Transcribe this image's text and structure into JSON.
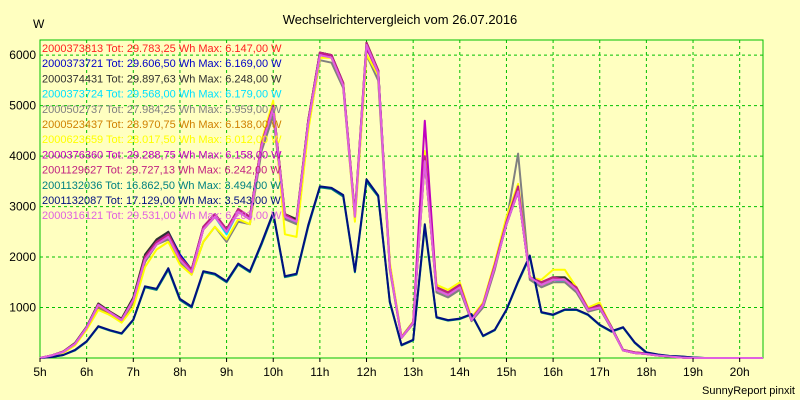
{
  "chart_data": {
    "type": "line",
    "title": "Wechselrichtervergleich vom 26.07.2016",
    "ylabel": "W",
    "xlabel": "",
    "footer": "SunnyReport pinxit",
    "x_ticks": [
      "5h",
      "6h",
      "7h",
      "8h",
      "9h",
      "10h",
      "11h",
      "12h",
      "13h",
      "14h",
      "15h",
      "16h",
      "17h",
      "18h",
      "19h",
      "20h"
    ],
    "y_ticks": [
      1000,
      2000,
      3000,
      4000,
      5000,
      6000
    ],
    "xlim": [
      5,
      20.5
    ],
    "ylim": [
      0,
      6300
    ],
    "grid": true,
    "legend_position": "top-left",
    "x": [
      5.0,
      5.25,
      5.5,
      5.75,
      6.0,
      6.25,
      6.5,
      6.75,
      7.0,
      7.25,
      7.5,
      7.75,
      8.0,
      8.25,
      8.5,
      8.75,
      9.0,
      9.25,
      9.5,
      9.75,
      10.0,
      10.25,
      10.5,
      10.75,
      11.0,
      11.25,
      11.5,
      11.75,
      12.0,
      12.25,
      12.5,
      12.75,
      13.0,
      13.25,
      13.5,
      13.75,
      14.0,
      14.25,
      14.5,
      14.75,
      15.0,
      15.25,
      15.5,
      15.75,
      16.0,
      16.25,
      16.5,
      16.75,
      17.0,
      17.25,
      17.5,
      17.75,
      18.0,
      18.25,
      18.5,
      18.75,
      19.0,
      19.25,
      19.5,
      19.75,
      20.0,
      20.25,
      20.5
    ],
    "series": [
      {
        "name": "2000373813",
        "label": "2000373813 Tot: 29.783,25 Wh Max: 6.147,00 W",
        "color": "#ff2020",
        "values": [
          0,
          50,
          120,
          280,
          600,
          1050,
          900,
          750,
          1150,
          1950,
          2250,
          2400,
          1950,
          1700,
          2550,
          2800,
          2500,
          2900,
          2750,
          4200,
          4950,
          2800,
          2700,
          4650,
          6000,
          5950,
          5400,
          2800,
          6150,
          5650,
          1800,
          400,
          700,
          3900,
          1350,
          1250,
          1400,
          750,
          1050,
          1800,
          2700,
          3300,
          1600,
          1450,
          1550,
          1550,
          1350,
          950,
          1000,
          600,
          150,
          100,
          80,
          50,
          30,
          10,
          0,
          0,
          0,
          0,
          0,
          0,
          0
        ]
      },
      {
        "name": "2000373721",
        "label": "2000373721 Tot: 29.606,50 Wh Max: 6.169,00 W",
        "color": "#0000c8",
        "values": [
          0,
          50,
          120,
          280,
          600,
          1050,
          900,
          750,
          1150,
          2000,
          2300,
          2500,
          2050,
          1750,
          2600,
          2850,
          2550,
          2950,
          2800,
          4250,
          5000,
          2800,
          2700,
          4700,
          6050,
          6000,
          5450,
          2800,
          6150,
          5700,
          1850,
          400,
          700,
          4000,
          1350,
          1250,
          1400,
          750,
          1050,
          1800,
          2650,
          3300,
          1600,
          1450,
          1550,
          1550,
          1350,
          950,
          1000,
          600,
          150,
          100,
          80,
          50,
          30,
          10,
          0,
          0,
          0,
          0,
          0,
          0,
          0
        ]
      },
      {
        "name": "2000374431",
        "label": "2000374431 Tot: 29.897,63 Wh Max: 6.248,00 W",
        "color": "#303030",
        "values": [
          0,
          50,
          130,
          300,
          620,
          1080,
          920,
          780,
          1200,
          2050,
          2350,
          2500,
          2000,
          1750,
          2550,
          2800,
          2500,
          2900,
          2800,
          4250,
          5000,
          2850,
          2750,
          4700,
          6050,
          6000,
          5450,
          2850,
          6250,
          5700,
          1800,
          420,
          720,
          4000,
          1400,
          1300,
          1450,
          780,
          1080,
          1850,
          2700,
          3350,
          1600,
          1500,
          1600,
          1600,
          1400,
          980,
          1050,
          620,
          160,
          110,
          90,
          60,
          30,
          10,
          0,
          0,
          0,
          0,
          0,
          0,
          0
        ]
      },
      {
        "name": "2000373724",
        "label": "2000373724 Tot: 29.568,00 Wh Max: 6.179,00 W",
        "color": "#00e0ff",
        "values": [
          0,
          50,
          120,
          270,
          590,
          1030,
          880,
          740,
          1130,
          1950,
          2250,
          2400,
          1950,
          1700,
          2550,
          2800,
          2450,
          2900,
          2750,
          4200,
          4950,
          2800,
          2650,
          4650,
          6000,
          5950,
          5400,
          2800,
          6150,
          5650,
          1800,
          400,
          700,
          3900,
          1350,
          1250,
          1400,
          750,
          1050,
          1800,
          2650,
          3300,
          1600,
          1450,
          1550,
          1500,
          1350,
          950,
          1000,
          600,
          150,
          100,
          80,
          50,
          30,
          10,
          0,
          0,
          0,
          0,
          0,
          0,
          0
        ]
      },
      {
        "name": "2000502737",
        "label": "2000502737 Tot: 27.984,25 Wh Max: 5.959,00 W",
        "color": "#808080",
        "values": [
          0,
          50,
          120,
          270,
          580,
          1000,
          850,
          720,
          1100,
          1900,
          2250,
          2350,
          1900,
          1650,
          2300,
          2600,
          2300,
          2700,
          2650,
          4100,
          4800,
          2750,
          2650,
          4550,
          5900,
          5850,
          5350,
          2750,
          6000,
          5500,
          1750,
          400,
          680,
          3950,
          1300,
          1200,
          1350,
          730,
          1000,
          1750,
          2700,
          4050,
          1550,
          1400,
          1500,
          1500,
          1300,
          920,
          980,
          580,
          150,
          100,
          80,
          50,
          30,
          10,
          0,
          0,
          0,
          0,
          0,
          0,
          0
        ]
      },
      {
        "name": "2000523437",
        "label": "2000523437 Tot: 28.970,75 Wh Max: 6.138,00 W",
        "color": "#d08000",
        "values": [
          0,
          50,
          120,
          270,
          590,
          1030,
          880,
          740,
          1130,
          1950,
          2250,
          2400,
          1950,
          1700,
          2550,
          2800,
          2500,
          2900,
          2750,
          4200,
          4950,
          2800,
          2700,
          4650,
          6000,
          5950,
          5400,
          2800,
          6140,
          5650,
          1800,
          400,
          700,
          3900,
          1350,
          1250,
          1400,
          750,
          1050,
          1800,
          2650,
          3300,
          1600,
          1450,
          1550,
          1550,
          1350,
          950,
          1000,
          600,
          150,
          100,
          80,
          50,
          30,
          10,
          0,
          0,
          0,
          0,
          0,
          0,
          0
        ]
      },
      {
        "name": "2000623659",
        "label": "2000623659 Tot: 28.017,50 Wh Max: 6.012,00 W",
        "color": "#ffff00",
        "values": [
          0,
          40,
          100,
          250,
          560,
          950,
          850,
          700,
          1000,
          1800,
          2150,
          2300,
          1850,
          1650,
          2300,
          2600,
          2350,
          2750,
          2650,
          4300,
          5100,
          2450,
          2400,
          4500,
          5950,
          5950,
          5450,
          2700,
          6010,
          5600,
          1900,
          420,
          720,
          4100,
          1450,
          1350,
          1500,
          800,
          1100,
          1900,
          2800,
          3450,
          1600,
          1550,
          1750,
          1750,
          1400,
          1000,
          1100,
          600,
          150,
          100,
          80,
          50,
          30,
          10,
          0,
          0,
          0,
          0,
          0,
          0,
          0
        ]
      },
      {
        "name": "2000376360",
        "label": "2000376360 Tot: 29.288,75 Wh Max: 6.158,00 W",
        "color": "#c000c0",
        "values": [
          0,
          50,
          120,
          280,
          600,
          1050,
          900,
          750,
          1150,
          1950,
          2250,
          2450,
          2000,
          1700,
          2550,
          2800,
          2500,
          2900,
          2750,
          4200,
          4950,
          2800,
          2700,
          4650,
          6000,
          6000,
          5400,
          2800,
          6150,
          5650,
          1800,
          400,
          700,
          4700,
          1350,
          1250,
          1400,
          750,
          1050,
          1800,
          2650,
          3300,
          1600,
          1450,
          1550,
          1550,
          1350,
          950,
          1000,
          600,
          150,
          100,
          80,
          50,
          30,
          10,
          0,
          0,
          0,
          0,
          0,
          0,
          0
        ]
      },
      {
        "name": "2001129627",
        "label": "2001129627 Tot: 29.727,13 Wh Max: 6.242,00 W",
        "color": "#c02080",
        "values": [
          0,
          50,
          130,
          290,
          610,
          1060,
          910,
          760,
          1160,
          2000,
          2300,
          2450,
          2000,
          1750,
          2600,
          2850,
          2550,
          2950,
          2800,
          4250,
          5000,
          2850,
          2700,
          4700,
          6050,
          6000,
          5450,
          2850,
          6240,
          5700,
          1800,
          410,
          710,
          4000,
          1400,
          1300,
          1450,
          770,
          1070,
          1850,
          2700,
          3400,
          1600,
          1500,
          1600,
          1550,
          1400,
          970,
          1040,
          610,
          160,
          110,
          90,
          60,
          30,
          10,
          0,
          0,
          0,
          0,
          0,
          0,
          0
        ]
      },
      {
        "name": "2001132036",
        "label": "2001132036 Tot: 16.862,50 Wh Max: 3.494,00 W",
        "color": "#008080",
        "values": [
          0,
          20,
          60,
          150,
          320,
          620,
          540,
          480,
          750,
          1400,
          1350,
          1750,
          1150,
          1000,
          1700,
          1650,
          1500,
          1850,
          1700,
          2250,
          2850,
          1600,
          1650,
          2600,
          3380,
          3350,
          3200,
          1700,
          3490,
          3200,
          1100,
          250,
          350,
          2600,
          800,
          740,
          770,
          860,
          430,
          550,
          950,
          1500,
          2000,
          900,
          850,
          950,
          950,
          850,
          650,
          520,
          600,
          300,
          100,
          60,
          40,
          30,
          10,
          0,
          0,
          0,
          0,
          0,
          0
        ]
      },
      {
        "name": "2001132087",
        "label": "2001132087 Tot: 17.129,00 Wh Max: 3.543,00 W",
        "color": "#001080",
        "values": [
          0,
          20,
          60,
          160,
          330,
          630,
          550,
          490,
          760,
          1420,
          1370,
          1780,
          1170,
          1020,
          1720,
          1670,
          1520,
          1870,
          1720,
          2280,
          2880,
          1620,
          1670,
          2630,
          3400,
          3370,
          3230,
          1720,
          3540,
          3220,
          1120,
          260,
          360,
          2650,
          810,
          750,
          780,
          870,
          440,
          560,
          960,
          1520,
          2030,
          910,
          860,
          960,
          960,
          860,
          660,
          530,
          610,
          310,
          110,
          70,
          40,
          30,
          10,
          0,
          0,
          0,
          0,
          0,
          0
        ]
      },
      {
        "name": "2000316121",
        "label": "2000316121 Tot: 29.531,00 Wh Max: 6.203,00 W",
        "color": "#e060e0",
        "values": [
          0,
          50,
          120,
          280,
          600,
          1050,
          900,
          750,
          1150,
          1950,
          2250,
          2400,
          1950,
          1700,
          2550,
          2800,
          2500,
          2900,
          2750,
          4200,
          4950,
          2800,
          2700,
          4650,
          6000,
          5950,
          5400,
          2800,
          6200,
          5650,
          1800,
          400,
          700,
          3900,
          1350,
          1250,
          1400,
          750,
          1050,
          1800,
          2650,
          3300,
          1600,
          1450,
          1550,
          1550,
          1350,
          950,
          1000,
          600,
          150,
          100,
          80,
          50,
          30,
          10,
          0,
          0,
          0,
          0,
          0,
          0,
          0
        ]
      }
    ]
  }
}
